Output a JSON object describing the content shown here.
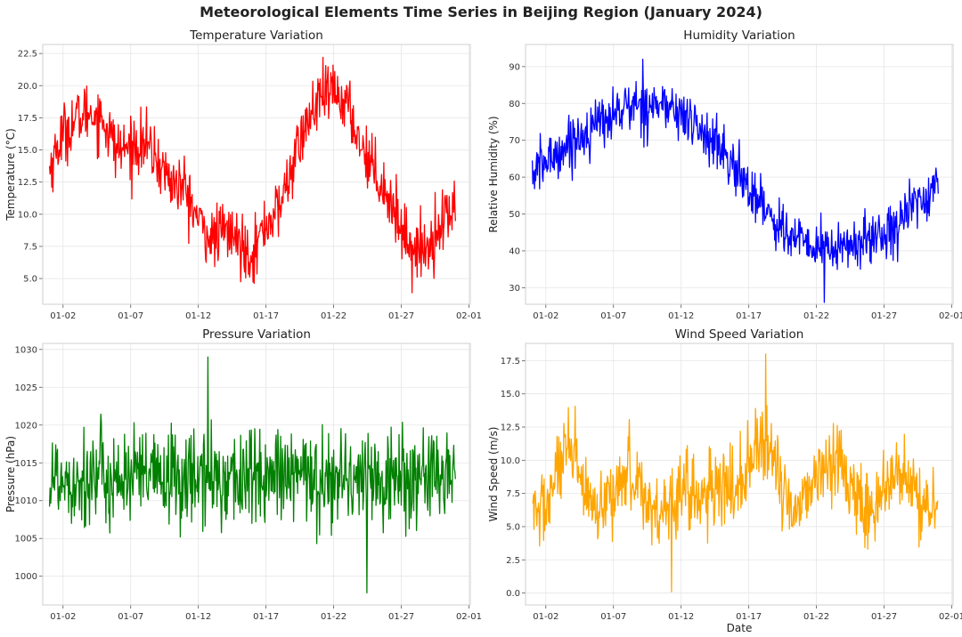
{
  "suptitle": "Meteorological Elements Time Series in Beijing Region (January 2024)",
  "chart_data": [
    {
      "type": "line",
      "title": "Temperature Variation",
      "xlabel": "",
      "ylabel": "Temperature (°C)",
      "color": "#ff0000",
      "x_range": [
        "2024-01-01",
        "2024-02-01"
      ],
      "x_ticks": [
        "01-02",
        "01-07",
        "01-12",
        "01-17",
        "01-22",
        "01-27",
        "02-01"
      ],
      "ylim": [
        3.0,
        23.2
      ],
      "y_ticks": [
        5.0,
        7.5,
        10.0,
        12.5,
        15.0,
        17.5,
        20.0,
        22.5
      ],
      "y_tick_labels": [
        "5.0",
        "7.5",
        "10.0",
        "12.5",
        "15.0",
        "17.5",
        "20.0",
        "22.5"
      ],
      "sampling": "hourly",
      "series": [
        {
          "x_start": "2024-01-01 00:00",
          "values": [
            13.5,
            16.3,
            17.4,
            18.0,
            17.3,
            15.0,
            15.2,
            15.6,
            14.1,
            12.5,
            12.0,
            9.5,
            8.0,
            8.8,
            7.8,
            7.0,
            9.2,
            10.5,
            14.0,
            17.0,
            19.0,
            19.5,
            18.5,
            15.5,
            13.5,
            11.5,
            9.0,
            7.0,
            7.5,
            9.5,
            10.5
          ]
        }
      ],
      "extremes": {
        "max": 22.2,
        "min": 3.9
      }
    },
    {
      "type": "line",
      "title": "Humidity Variation",
      "xlabel": "",
      "ylabel": "Relative Humidity (%)",
      "color": "#0000ff",
      "x_range": [
        "2024-01-01",
        "2024-02-01"
      ],
      "x_ticks": [
        "01-02",
        "01-07",
        "01-12",
        "01-17",
        "01-22",
        "01-27",
        "02-01"
      ],
      "ylim": [
        25.5,
        96.0
      ],
      "y_ticks": [
        30,
        40,
        50,
        60,
        70,
        80,
        90
      ],
      "y_tick_labels": [
        "30",
        "40",
        "50",
        "60",
        "70",
        "80",
        "90"
      ],
      "sampling": "hourly",
      "series": [
        {
          "x_start": "2024-01-01 00:00",
          "values": [
            61,
            64,
            67,
            70,
            72,
            75,
            77,
            79,
            80,
            80,
            79,
            77,
            74,
            71,
            67,
            62,
            57,
            53,
            48,
            44,
            42,
            41,
            40,
            41,
            42,
            43,
            45,
            48,
            51,
            55,
            58
          ]
        }
      ],
      "extremes": {
        "max": 92,
        "min": 26
      }
    },
    {
      "type": "line",
      "title": "Pressure Variation",
      "xlabel": "",
      "ylabel": "Pressure (hPa)",
      "color": "#008000",
      "x_range": [
        "2024-01-01",
        "2024-02-01"
      ],
      "x_ticks": [
        "01-02",
        "01-07",
        "01-12",
        "01-17",
        "01-22",
        "01-27",
        "02-01"
      ],
      "ylim": [
        996.2,
        1030.8
      ],
      "y_ticks": [
        1000,
        1005,
        1010,
        1015,
        1020,
        1025,
        1030
      ],
      "y_tick_labels": [
        "1000",
        "1005",
        "1010",
        "1015",
        "1020",
        "1025",
        "1030"
      ],
      "sampling": "hourly",
      "series": [
        {
          "x_start": "2024-01-01 00:00",
          "values": [
            1013,
            1013,
            1013,
            1013,
            1013,
            1013,
            1013,
            1013,
            1013,
            1013,
            1013,
            1013,
            1013,
            1013,
            1013,
            1013,
            1013,
            1013,
            1013,
            1013,
            1013,
            1013,
            1013,
            1013,
            1013,
            1013,
            1013,
            1013,
            1013,
            1013,
            1013
          ]
        }
      ],
      "extremes": {
        "max": 1029,
        "min": 997.8
      }
    },
    {
      "type": "line",
      "title": "Wind Speed Variation",
      "xlabel": "Date",
      "ylabel": "Wind Speed (m/s)",
      "color": "#ffa500",
      "x_range": [
        "2024-01-01",
        "2024-02-01"
      ],
      "x_ticks": [
        "01-02",
        "01-07",
        "01-12",
        "01-17",
        "01-22",
        "01-27",
        "02-01"
      ],
      "ylim": [
        -0.9,
        18.8
      ],
      "y_ticks": [
        0.0,
        2.5,
        5.0,
        7.5,
        10.0,
        12.5,
        15.0,
        17.5
      ],
      "y_tick_labels": [
        "0.0",
        "2.5",
        "5.0",
        "7.5",
        "10.0",
        "12.5",
        "15.0",
        "17.5"
      ],
      "sampling": "hourly",
      "series": [
        {
          "x_start": "2024-01-01 00:00",
          "values": [
            6.0,
            6.5,
            9.5,
            10.5,
            7.0,
            5.5,
            7.5,
            9.5,
            8.0,
            6.0,
            6.5,
            8.0,
            7.5,
            7.0,
            8.0,
            7.5,
            10.0,
            11.0,
            9.5,
            6.5,
            7.0,
            9.0,
            9.5,
            10.0,
            7.0,
            6.0,
            7.5,
            9.0,
            8.0,
            6.5,
            6.0
          ]
        }
      ],
      "extremes": {
        "max": 18.0,
        "min": 0.1
      }
    }
  ]
}
